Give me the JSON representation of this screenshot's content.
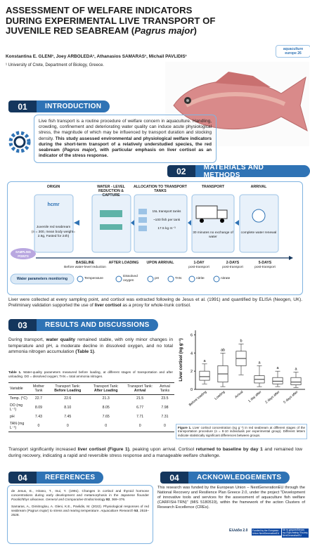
{
  "header": {
    "title": [
      {
        "t": "ASSESSMENT OF WELFARE INDICATORS DURING EXPERIMENTAL LIVE TRANSPORT OF JUVENILE RED SEABREAM ("
      },
      {
        "i": "Pagrus major"
      },
      {
        "t": ")"
      }
    ],
    "authors": "Konstantina E. GLENI¹, Joey ARBOLEDA¹, Athanasios SAMARAS¹, Michail PAVLIDIS¹",
    "affiliation": "¹ University of Crete, Department of Biology, Greece.",
    "logo": "aquaculture europe 26"
  },
  "intro": {
    "number": "01",
    "title": "INTRODUCTION",
    "text": [
      "Live fish transport is a routine procedure of welfare concern in aquaculture. Handling, crowding, confinement and deteriorating water quality can induce acute physiological stress, the magnitude of which may be influenced by transport duration and stocking density. ",
      {
        "b": "This study assessed environmental and physiological welfare indicators during the short-term transport of a relatively understudied species, the red seabream ("
      },
      {
        "bi": "Pagrus major"
      },
      {
        "b": "), with particular emphasis on liver cortisol as an indicator of the stress response."
      }
    ]
  },
  "methods": {
    "number": "02",
    "title": "MATERIALS AND METHODS",
    "steps": [
      {
        "title": "ORIGIN",
        "lines": [
          "hcmr",
          "Juvenile red seabream",
          "(n = 300, mean body weight= 2.6g, Fasted for 24h)"
        ]
      },
      {
        "title": "WATER - LEVEL REDUCTION & CAPTURE",
        "lines": []
      },
      {
        "title": "ALLOCATION TO TRANSPORT TANKS",
        "lines": [
          "15L transport tanks",
          "~100 fish per tank",
          "17.5 kg m⁻³"
        ]
      },
      {
        "title": "TRANSPORT",
        "lines": [
          "30 minutes no exchange of water"
        ]
      },
      {
        "title": "ARRIVAL",
        "lines": [
          "complete water renewal"
        ]
      }
    ],
    "sampling": "SAMPLING POINTS",
    "points": [
      {
        "label": "BASELINE",
        "sub": "Before water-level reduction"
      },
      {
        "label": "AFTER LOADING",
        "sub": ""
      },
      {
        "label": "UPON ARRIVAL",
        "sub": ""
      },
      {
        "label": "1-DAY",
        "sub": "post-transport"
      },
      {
        "label": "2-DAYS",
        "sub": "post-transport"
      },
      {
        "label": "5-DAYS",
        "sub": "post-transport"
      }
    ],
    "water": "Water parameters monitoring",
    "params": [
      "Temperature",
      "Dissolved oxygen",
      "pH",
      "TAN",
      "nitrite",
      "nitrate"
    ],
    "text": [
      "Liver were collected at every sampling point, and cortisol was extracted following de Jesus et al. (1991) and quantified by ELISA (Neogen, UK). Preliminary validation supported the use of ",
      {
        "b": "liver cortisol"
      },
      " as a proxy for whole-trunk cortisol."
    ]
  },
  "results": {
    "number": "03",
    "title": "RESULTS AND DISCUSSIONS",
    "text": [
      "During transport, ",
      {
        "b": "water quality"
      },
      " remained stable, with only minor changes in temperature and pH, a moderate decline in dissolved oxygen, and no total ammonia nitrogen accumulation ",
      {
        "b": "(Table 1)"
      },
      "."
    ],
    "table_caption": [
      {
        "b": "Table 1."
      },
      " Water-quality parameters measured before loading, at different stages of transportation and after unloading. DO = dissolved oxygen; TAN = total ammonia nitrogen."
    ],
    "table": {
      "header": [
        [
          "Variable"
        ],
        [
          "Mother Tank"
        ],
        [
          "Transport Tank: ",
          {
            "b": "Before Loading"
          }
        ],
        [
          "Transport Tank: ",
          {
            "b": "After Loading"
          }
        ],
        [
          "Transport Tank: ",
          {
            "b": "Arrival"
          }
        ],
        [
          "Arrival Tanks"
        ]
      ],
      "rows": [
        [
          "Temp. (°C)",
          "22.7",
          "22.6",
          "21.3",
          "21.5",
          "23.5"
        ],
        [
          "DO (mg L⁻¹)",
          "8.09",
          "8.10",
          "8.05",
          "6.77",
          "7.98"
        ],
        [
          "pH",
          "7.43",
          "7.45",
          "7.65",
          "7.71",
          "7.31"
        ],
        [
          "TAN (mg L⁻¹)",
          "0",
          "0",
          "0",
          "0",
          "0"
        ]
      ]
    },
    "text2": [
      "Transport significantly increased ",
      {
        "b": "liver cortisol"
      },
      " ",
      {
        "b": "(Figure 1)"
      },
      ", peaking upon arrival. Cortisol ",
      {
        "b": "returned to baseline by day 1"
      },
      " and remained low during recovery, indicating a rapid and reversible stress response and a manageable welfare challenge."
    ]
  },
  "figure": {
    "ylabel": "Liver cortisol (ng g⁻¹)",
    "ylim": [
      0,
      6.5
    ],
    "yticks": [
      0,
      2,
      4,
      6
    ],
    "categories": [
      "Before loading",
      "Loading",
      "Arrival",
      "1 day after",
      "2 days after",
      "5 days after"
    ],
    "letters": [
      "a",
      "ab",
      "b",
      "a",
      "a",
      "a"
    ],
    "boxes": [
      {
        "min": 0.6,
        "q1": 1.0,
        "med": 1.4,
        "q3": 2.0,
        "max": 2.8
      },
      {
        "min": 0.3,
        "q1": 0.8,
        "med": 1.7,
        "q3": 2.6,
        "max": 4.0
      },
      {
        "min": 1.6,
        "q1": 2.6,
        "med": 3.4,
        "q3": 4.2,
        "max": 5.0
      },
      {
        "min": 0.3,
        "q1": 0.7,
        "med": 1.1,
        "q3": 1.5,
        "max": 2.6
      },
      {
        "min": 0.3,
        "q1": 0.6,
        "med": 0.9,
        "q3": 1.3,
        "max": 2.0
      },
      {
        "min": 0.2,
        "q1": 0.5,
        "med": 0.8,
        "q3": 1.3,
        "max": 1.9
      }
    ],
    "caption": [
      {
        "b": "Figure 1."
      },
      " Liver cortisol concentration (ng g⁻¹) in red seabream at different stages of the transportation procedure (n = 8-10 individuals per experimental group). Different letters indicate statistically significant differences between groups."
    ]
  },
  "references": {
    "number": "04",
    "title": "REFERENCES",
    "items": [
      [
        "de Jesus, E., Hirano, T., Inui, Y. (1991). Changes in cortisol and thyroid hormone concentrations during early development and metamorphosis in the Japanese flounder ",
        {
          "i": "Paralichthys olivaceus"
        },
        ". ",
        {
          "i": "General and Comparative Endocrinology"
        },
        " ",
        {
          "b": "82"
        },
        ", 369–376."
      ],
      [
        "Samaras, A., Dimitroglou, A. Gleni, K.E., Pavlidis, M. (2022). Physiological responses of red seabream (",
        {
          "i": "Pagrus major"
        },
        ") to stress and rearing temperature. ",
        {
          "i": "Aquaculture Research"
        },
        " ",
        {
          "b": "53"
        },
        ", 2518–2528."
      ]
    ]
  },
  "acknowledgements": {
    "number": "04",
    "title": "ACKNOWLEDGEMENTS",
    "text": "This research was funded by the European Union – NextGenerationEU through the National Recovery and Resilience Plan Greece 2.0, under the project \"Development of innovative tools and services for the assessment of aquaculture fish welfare (CARFISH-TRN)\" (MIS 5180519), within the framework of the action Clusters of Research Excellence (CREs).",
    "logos": [
      "Ελλάδα 2.0",
      "Funded by the European Union NextGenerationEU",
      "Με τη χρηματοδότηση της Ευρωπαϊκής Ένωσης NextGenerationEU"
    ]
  }
}
